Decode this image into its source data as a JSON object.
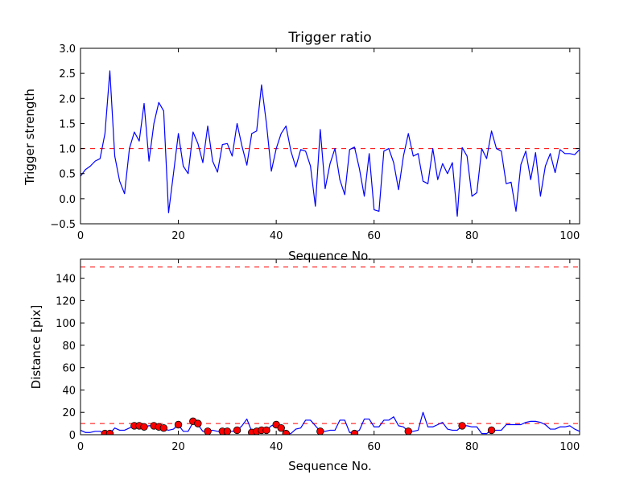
{
  "chart_data": [
    {
      "type": "line",
      "title": "Trigger ratio",
      "xlabel": "Sequence No.",
      "ylabel": "Trigger strength",
      "xlim": [
        0,
        102
      ],
      "ylim": [
        -0.5,
        3.0
      ],
      "xticks": [
        0,
        20,
        40,
        60,
        80,
        100
      ],
      "yticks": [
        -0.5,
        0.0,
        0.5,
        1.0,
        1.5,
        2.0,
        2.5,
        3.0
      ],
      "xtick_labels": [
        "0",
        "20",
        "40",
        "60",
        "80",
        "100"
      ],
      "ytick_labels": [
        "−0.5",
        "0.0",
        "0.5",
        "1.0",
        "1.5",
        "2.0",
        "2.5",
        "3.0"
      ],
      "threshold": 1.0,
      "threshold_color": "#ff0000",
      "series": [
        {
          "name": "trigger strength",
          "color": "#0000ff",
          "values": [
            0.45,
            0.58,
            0.65,
            0.75,
            0.8,
            1.3,
            2.55,
            0.85,
            0.35,
            0.1,
            1.0,
            1.33,
            1.15,
            1.9,
            0.75,
            1.5,
            1.92,
            1.75,
            -0.28,
            0.5,
            1.3,
            0.65,
            0.5,
            1.33,
            1.1,
            0.72,
            1.45,
            0.75,
            0.53,
            1.08,
            1.1,
            0.85,
            1.5,
            1.05,
            0.67,
            1.3,
            1.35,
            2.27,
            1.5,
            0.55,
            1.0,
            1.3,
            1.45,
            0.95,
            0.63,
            0.98,
            0.95,
            0.65,
            -0.15,
            1.38,
            0.2,
            0.7,
            1.0,
            0.38,
            0.08,
            0.98,
            1.03,
            0.6,
            0.05,
            0.9,
            -0.22,
            -0.25,
            0.95,
            1.0,
            0.72,
            0.18,
            0.85,
            1.3,
            0.85,
            0.9,
            0.35,
            0.3,
            1.0,
            0.38,
            0.7,
            0.5,
            0.72,
            -0.35,
            1.02,
            0.85,
            0.05,
            0.12,
            1.0,
            0.8,
            1.35,
            1.0,
            0.95,
            0.3,
            0.33,
            -0.25,
            0.68,
            0.95,
            0.38,
            0.92,
            0.05,
            0.65,
            0.9,
            0.52,
            0.98,
            0.9,
            0.9,
            0.88,
            0.98
          ]
        }
      ]
    },
    {
      "type": "line",
      "title": "",
      "xlabel": "Sequence No.",
      "ylabel": "Distance [pix]",
      "xlim": [
        0,
        102
      ],
      "ylim": [
        0,
        157
      ],
      "xticks": [
        0,
        20,
        40,
        60,
        80,
        100
      ],
      "yticks": [
        0,
        20,
        40,
        60,
        80,
        100,
        120,
        140
      ],
      "xtick_labels": [
        "0",
        "20",
        "40",
        "60",
        "80",
        "100"
      ],
      "ytick_labels": [
        "0",
        "20",
        "40",
        "60",
        "80",
        "100",
        "120",
        "140"
      ],
      "thresholds": [
        10,
        150
      ],
      "threshold_color": "#ff0000",
      "series": [
        {
          "name": "distance",
          "color": "#0000ff",
          "values": [
            4,
            2,
            2,
            3,
            3,
            1,
            1,
            6,
            4,
            4,
            6,
            8,
            8,
            7,
            8,
            8,
            6,
            5,
            4,
            5,
            9,
            3,
            3,
            11,
            9,
            3,
            3,
            4,
            3,
            3,
            3,
            3,
            4,
            8,
            14,
            3,
            3,
            4,
            4,
            8,
            9,
            5,
            1,
            1,
            5,
            6,
            13,
            13,
            8,
            3,
            3,
            4,
            4,
            13,
            13,
            2,
            2,
            4,
            14,
            14,
            7,
            7,
            13,
            13,
            16,
            8,
            7,
            3,
            3,
            4,
            20,
            7,
            7,
            9,
            11,
            5,
            4,
            4,
            8,
            8,
            7,
            7,
            1,
            1,
            4,
            4,
            4,
            9,
            9,
            9,
            9,
            11,
            12,
            12,
            11,
            9,
            5,
            5,
            7,
            7,
            8,
            5,
            3
          ]
        },
        {
          "name": "triggered",
          "type": "scatter",
          "color": "#ff0000",
          "x": [
            5,
            6,
            11,
            12,
            13,
            15,
            16,
            17,
            20,
            23,
            24,
            26,
            29,
            30,
            32,
            35,
            36,
            37,
            38,
            40,
            41,
            42,
            49,
            56,
            67,
            78,
            84
          ],
          "y": [
            1,
            1,
            8,
            8,
            7,
            8,
            7,
            6,
            9,
            12,
            10,
            3,
            3,
            3,
            4,
            2,
            3,
            4,
            4,
            9,
            6,
            1,
            3,
            1,
            3,
            8,
            4
          ]
        }
      ]
    }
  ]
}
